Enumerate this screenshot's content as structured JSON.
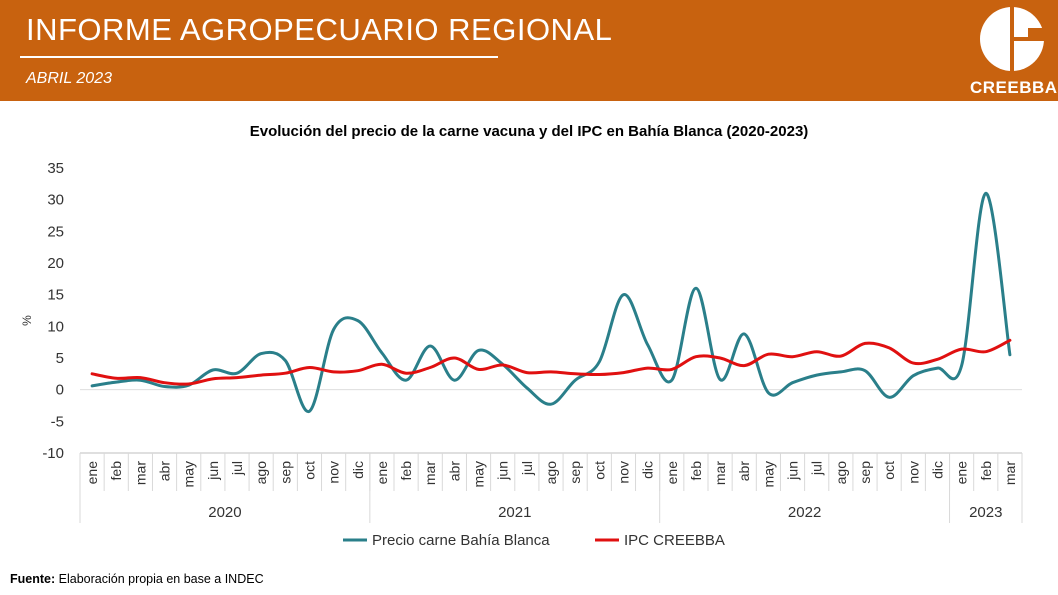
{
  "header": {
    "title": "INFORME AGROPECUARIO REGIONAL",
    "date": "ABRIL 2023",
    "logo_text": "CREEBBA"
  },
  "footer": {
    "label": "Fuente:",
    "text": "Elaboración propia en base a INDEC"
  },
  "colors": {
    "header_bg": "#c8620f",
    "series_teal": "#2a7f8a",
    "series_red": "#e01010"
  },
  "chart_data": {
    "type": "line",
    "title": "Evolución del precio de la carne vacuna y del IPC en Bahía Blanca (2020-2023)",
    "ylabel": "%",
    "ylim": [
      -10,
      35
    ],
    "yticks": [
      -10,
      -5,
      0,
      5,
      10,
      15,
      20,
      25,
      30,
      35
    ],
    "categories": [
      "ene",
      "feb",
      "mar",
      "abr",
      "may",
      "jun",
      "jul",
      "ago",
      "sep",
      "oct",
      "nov",
      "dic",
      "ene",
      "feb",
      "mar",
      "abr",
      "may",
      "jun",
      "jul",
      "ago",
      "sep",
      "oct",
      "nov",
      "dic",
      "ene",
      "feb",
      "mar",
      "abr",
      "may",
      "jun",
      "jul",
      "ago",
      "sep",
      "oct",
      "nov",
      "dic",
      "ene",
      "feb",
      "mar"
    ],
    "year_groups": [
      {
        "label": "2020",
        "count": 12
      },
      {
        "label": "2021",
        "count": 12
      },
      {
        "label": "2022",
        "count": 12
      },
      {
        "label": "2023",
        "count": 3
      }
    ],
    "legend_position": "bottom",
    "series": [
      {
        "name": "Precio carne Bahía Blanca",
        "color": "#2a7f8a",
        "values": [
          0.6,
          1.2,
          1.5,
          0.5,
          0.7,
          3.1,
          2.6,
          5.7,
          4.6,
          -3.4,
          9.5,
          10.9,
          5.8,
          1.5,
          6.9,
          1.5,
          6.2,
          4.0,
          0.3,
          -2.3,
          1.5,
          4.4,
          15.0,
          7.1,
          1.5,
          16.0,
          1.6,
          8.8,
          -0.5,
          1.1,
          2.3,
          2.8,
          3.0,
          -1.2,
          2.2,
          3.4,
          3.8,
          31.0,
          5.5
        ]
      },
      {
        "name": "IPC CREEBBA",
        "color": "#e01010",
        "values": [
          2.5,
          1.8,
          1.9,
          1.1,
          0.9,
          1.7,
          1.9,
          2.3,
          2.6,
          3.5,
          2.8,
          3.0,
          4.0,
          2.6,
          3.5,
          5.0,
          3.2,
          3.9,
          2.7,
          2.8,
          2.5,
          2.4,
          2.7,
          3.4,
          3.2,
          5.2,
          5.0,
          3.8,
          5.6,
          5.2,
          6.0,
          5.3,
          7.3,
          6.6,
          4.2,
          4.8,
          6.4,
          6.0,
          7.8
        ]
      }
    ]
  }
}
